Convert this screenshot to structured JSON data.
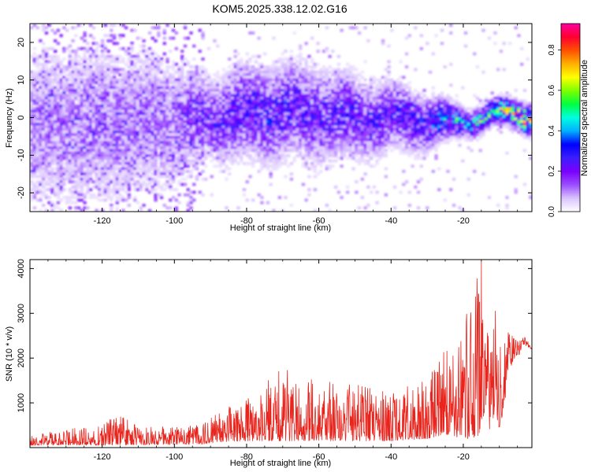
{
  "figure": {
    "title": "KOM5.2025.338.12.02.G16",
    "top_ylabel": "Frequency (Hz)",
    "top_xlabel": "Height of straight line (km)",
    "colorbar_label": "Normalized spectral amplitude",
    "bottom_ylabel": "SNR (10 * v/v)",
    "bottom_xlabel": "Height of straight line (km)"
  },
  "colors": {
    "line": "#e8241c",
    "axis": "#000000",
    "colormap": [
      "#ffffff",
      "#d9c2ff",
      "#9a4dff",
      "#7a00ff",
      "#3c1eff",
      "#0000ff",
      "#00b0ff",
      "#00ffe0",
      "#00ff40",
      "#7dff00",
      "#ffff00",
      "#ffb000",
      "#ff5000",
      "#ff0030",
      "#ff00a0"
    ]
  },
  "chart_data": [
    {
      "type": "heatmap",
      "name": "spectrogram",
      "xlabel": "Height of straight line (km)",
      "ylabel": "Frequency (Hz)",
      "xlim": [
        -140,
        -1
      ],
      "ylim": [
        -25,
        25
      ],
      "xticks": [
        -120,
        -100,
        -80,
        -60,
        -40,
        -20
      ],
      "xtick_labels": [
        "-120",
        "-100",
        "-80",
        "-60",
        "-40",
        "-20"
      ],
      "yticks": [
        -20,
        -10,
        0,
        10,
        20
      ],
      "ytick_labels": [
        "-20",
        "-10",
        "0",
        "10",
        "20"
      ],
      "colorbar": {
        "label": "Normalized spectral amplitude",
        "range": [
          0,
          0.93
        ],
        "ticks": [
          0.0,
          0.2,
          0.4,
          0.6,
          0.8
        ],
        "tick_labels": [
          "0.0",
          "0.2",
          "0.4",
          "0.6",
          "0.8"
        ]
      },
      "ridge": {
        "description": "signal concentrated near 0 Hz across all heights, strongest at -15 to -1 km",
        "x": [
          -140,
          -120,
          -100,
          -90,
          -80,
          -70,
          -60,
          -50,
          -40,
          -30,
          -25,
          -20,
          -15,
          -10,
          -5,
          -1
        ],
        "center_hz": [
          -3,
          -2,
          -1,
          0,
          1,
          2,
          1,
          0,
          0,
          -1,
          -1.5,
          -1,
          0,
          1,
          1.5,
          0
        ],
        "amplitude": [
          0.09,
          0.1,
          0.1,
          0.18,
          0.22,
          0.22,
          0.2,
          0.2,
          0.22,
          0.24,
          0.35,
          0.35,
          0.4,
          0.45,
          0.6,
          0.8
        ],
        "width_hz": [
          12,
          12,
          10,
          6,
          7,
          7,
          7,
          6,
          5,
          4,
          3,
          2,
          2,
          2,
          2,
          2
        ]
      }
    },
    {
      "type": "line",
      "name": "snr",
      "xlabel": "Height of straight line (km)",
      "ylabel": "SNR (10 * v/v)",
      "xlim": [
        -140,
        -1
      ],
      "ylim": [
        0,
        4200
      ],
      "xticks": [
        -120,
        -100,
        -80,
        -60,
        -40,
        -20
      ],
      "xtick_labels": [
        "-120",
        "-100",
        "-80",
        "-60",
        "-40",
        "-20"
      ],
      "yticks": [
        1000,
        2000,
        3000,
        4000
      ],
      "ytick_labels": [
        "1000",
        "2000",
        "3000",
        "4000"
      ],
      "series": [
        {
          "name": "SNR",
          "envelope_x": [
            -140,
            -130,
            -120,
            -115,
            -110,
            -100,
            -92,
            -88,
            -80,
            -72,
            -70,
            -60,
            -50,
            -40,
            -30,
            -25,
            -20,
            -18,
            -15,
            -14,
            -13,
            -11,
            -10,
            -8,
            -5,
            -3,
            -1
          ],
          "envelope_max": [
            300,
            420,
            520,
            800,
            500,
            450,
            520,
            850,
            1100,
            1700,
            1850,
            1500,
            1400,
            1400,
            1500,
            2300,
            2500,
            3800,
            4200,
            3700,
            2600,
            3400,
            2300,
            2600,
            2400,
            2500,
            2200
          ],
          "envelope_min": [
            50,
            60,
            50,
            60,
            60,
            70,
            80,
            120,
            150,
            150,
            150,
            150,
            150,
            150,
            200,
            300,
            200,
            200,
            300,
            900,
            300,
            800,
            400,
            1200,
            1800,
            2150,
            2200
          ]
        }
      ]
    }
  ]
}
